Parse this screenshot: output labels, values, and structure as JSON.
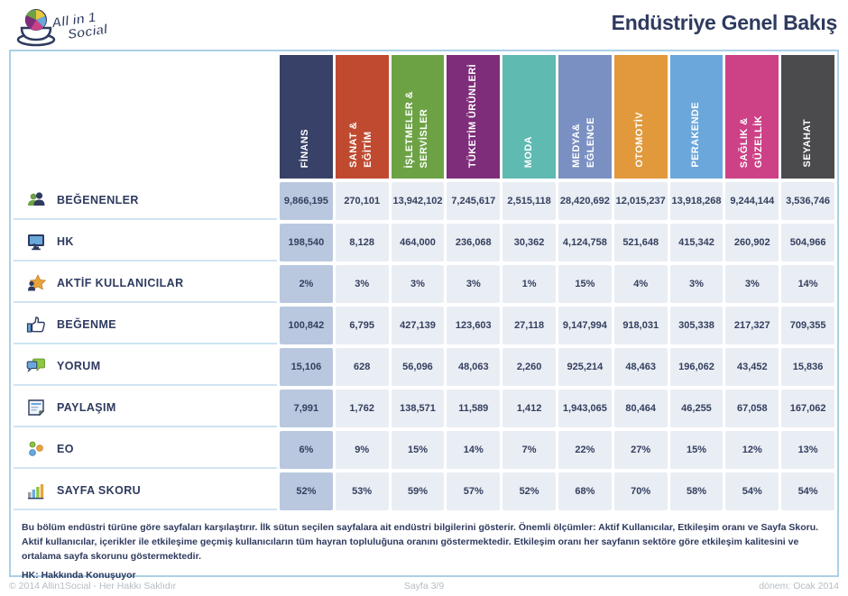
{
  "logo": {
    "line1": "All in 1",
    "line2": "Social"
  },
  "header": {
    "title": "Endüstriye Genel Bakış"
  },
  "table": {
    "columns": [
      {
        "label": "FİNANS",
        "color": "#384268"
      },
      {
        "label": "SANAT &\nEĞİTİM",
        "color": "#bf4a2f"
      },
      {
        "label": "İŞLETMELER &\nSERVİSLER",
        "color": "#6ca244"
      },
      {
        "label": "TÜKETİM ÜRÜNLERİ",
        "color": "#7e2d7a"
      },
      {
        "label": "MODA",
        "color": "#5fbab2"
      },
      {
        "label": "MEDYA&\nEĞLENCE",
        "color": "#7b90c2"
      },
      {
        "label": "OTOMOTİV",
        "color": "#e1993c"
      },
      {
        "label": "PERAKENDE",
        "color": "#6ba7db"
      },
      {
        "label": "SAĞLIK &\nGÜZELLİK",
        "color": "#cd4187"
      },
      {
        "label": "SEYAHAT",
        "color": "#4b4b4d"
      }
    ],
    "rows": [
      {
        "label": "BEĞENENLER",
        "icon": "users-icon",
        "values": [
          "9,866,195",
          "270,101",
          "13,942,102",
          "7,245,617",
          "2,515,118",
          "28,420,692",
          "12,015,237",
          "13,918,268",
          "9,244,144",
          "3,536,746"
        ]
      },
      {
        "label": "HK",
        "icon": "monitor-icon",
        "values": [
          "198,540",
          "8,128",
          "464,000",
          "236,068",
          "30,362",
          "4,124,758",
          "521,648",
          "415,342",
          "260,902",
          "504,966"
        ]
      },
      {
        "label": "AKTİF KULLANICILAR",
        "icon": "star-user-icon",
        "values": [
          "2%",
          "3%",
          "3%",
          "3%",
          "1%",
          "15%",
          "4%",
          "3%",
          "3%",
          "14%"
        ]
      },
      {
        "label": "BEĞENME",
        "icon": "thumbs-up-icon",
        "values": [
          "100,842",
          "6,795",
          "427,139",
          "123,603",
          "27,118",
          "9,147,994",
          "918,031",
          "305,338",
          "217,327",
          "709,355"
        ]
      },
      {
        "label": "YORUM",
        "icon": "comments-icon",
        "values": [
          "15,106",
          "628",
          "56,096",
          "48,063",
          "2,260",
          "925,214",
          "48,463",
          "196,062",
          "43,452",
          "15,836"
        ]
      },
      {
        "label": "PAYLAŞIM",
        "icon": "share-note-icon",
        "values": [
          "7,991",
          "1,762",
          "138,571",
          "11,589",
          "1,412",
          "1,943,065",
          "80,464",
          "46,255",
          "67,058",
          "167,062"
        ]
      },
      {
        "label": "EO",
        "icon": "dots-icon",
        "values": [
          "6%",
          "9%",
          "15%",
          "14%",
          "7%",
          "22%",
          "27%",
          "15%",
          "12%",
          "13%"
        ]
      },
      {
        "label": "SAYFA SKORU",
        "icon": "bar-chart-icon",
        "values": [
          "52%",
          "53%",
          "59%",
          "57%",
          "52%",
          "68%",
          "70%",
          "58%",
          "54%",
          "54%"
        ]
      }
    ]
  },
  "footer": {
    "description": "Bu bölüm endüstri türüne göre sayfaları karşılaştırır. İlk sütun seçilen sayfalara ait endüstri bilgilerini gösterir. Önemli ölçümler: Aktif Kullanıcılar, Etkileşim oranı ve Sayfa Skoru. Aktif kullanıcılar, içerikler ile etkileşime geçmiş kullanıcıların tüm hayran topluluğuna oranını göstermektedir. Etkileşim oranı her sayfanın sektöre göre etkileşim kalitesini ve ortalama sayfa skorunu göstermektedir.",
    "hk_note": "HK: Hakkında Konuşuyor"
  },
  "bottombar": {
    "copyright": "© 2014 Allin1Social - Her Hakkı Saklıdır",
    "page": "Sayfa 3/9",
    "period": "dönem: Ocak 2014"
  },
  "colors": {
    "accent_navy": "#2e3a5f",
    "panel_border": "#abd0e6",
    "first_col_bg": "#b9c8df",
    "cell_bg": "#e9edf4"
  }
}
